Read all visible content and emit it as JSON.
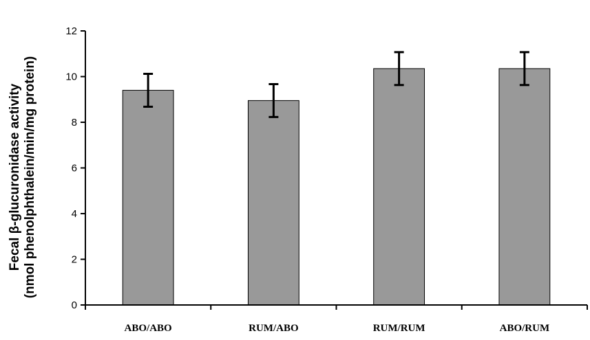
{
  "chart_data": {
    "type": "bar",
    "title": "",
    "xlabel": "",
    "ylabel_line1": "Fecal β-glucuronidase activity",
    "ylabel_line2": "(nmol phenolphthalein/min/mg protein)",
    "categories": [
      "ABO/ABO",
      "RUM/ABO",
      "RUM/RUM",
      "ABO/RUM"
    ],
    "values": [
      9.4,
      8.95,
      10.35,
      10.35
    ],
    "error": [
      0.72,
      0.72,
      0.72,
      0.72
    ],
    "ylim": [
      0,
      12
    ],
    "yticks": [
      0,
      2,
      4,
      6,
      8,
      10,
      12
    ],
    "ytick_labels": [
      "0",
      "2",
      "4",
      "6",
      "8",
      "10",
      "12"
    ],
    "grid": false,
    "legend": "none",
    "colors": {
      "bar_fill": "#999999",
      "bar_stroke": "#000000",
      "error_bar": "#000000",
      "axis": "#000000"
    }
  }
}
